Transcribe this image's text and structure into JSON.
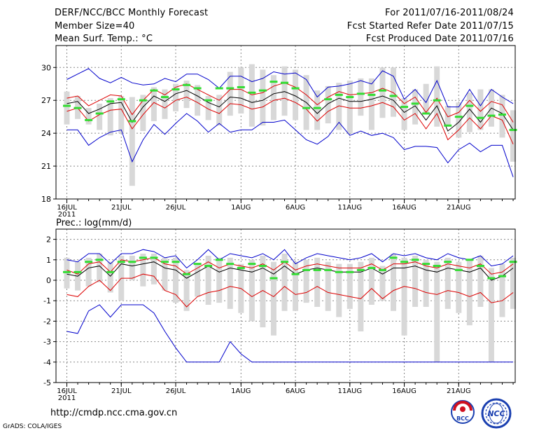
{
  "header": {
    "title": "DERF/NCC/BCC Monthly Forecast",
    "member_size": "Member Size=40",
    "variable": "Mean Surf. Temp.: °C",
    "forecast_window": "For 2011/07/16-2011/08/24",
    "start_date": "Fcst Started Refer Date 2011/07/15",
    "produced_date": "Fcst Produced Date 2011/07/16"
  },
  "footer": {
    "url": "http://cmdp.ncc.cma.gov.cn",
    "credit": "GrADS: COLA/IGES",
    "logo_left_text": "BCC",
    "logo_right_text": "NCC"
  },
  "colors": {
    "envelope": "#0000cc",
    "spread": "#dd0000",
    "mean": "#000000",
    "box": "#d8d8d8",
    "marker": "#33dd33",
    "grid": "#888888"
  },
  "chart_data": [
    {
      "type": "line",
      "title": "Mean Surf. Temp.: °C",
      "x_tick_labels": [
        "16JUL",
        "21JUL",
        "26JUL",
        "1AUG",
        "6AUG",
        "11AUG",
        "16AUG",
        "21AUG"
      ],
      "x_tick_days": [
        0,
        5,
        10,
        16,
        21,
        26,
        31,
        36
      ],
      "x_year_label": "2011",
      "ylim": [
        18,
        32
      ],
      "yticks": [
        18,
        21,
        24,
        27,
        30
      ],
      "series": [
        {
          "name": "max",
          "values": [
            28.9,
            29.4,
            29.9,
            29.0,
            28.6,
            29.1,
            28.6,
            28.4,
            28.5,
            29.0,
            28.7,
            29.4,
            29.4,
            28.9,
            28.1,
            29.2,
            29.2,
            28.7,
            29.0,
            29.6,
            29.4,
            29.5,
            28.9,
            27.3,
            28.2,
            28.3,
            28.5,
            28.8,
            28.5,
            29.7,
            29.2,
            27.1,
            28.0,
            26.8,
            28.8,
            26.4,
            26.4,
            28.0,
            26.5,
            28.0,
            27.3,
            26.7
          ]
        },
        {
          "name": "upper",
          "values": [
            27.2,
            27.4,
            26.5,
            27.0,
            27.5,
            27.4,
            25.7,
            27.0,
            28.0,
            27.5,
            28.2,
            28.5,
            28.0,
            27.5,
            27.0,
            28.0,
            28.0,
            27.5,
            27.7,
            28.3,
            28.6,
            28.2,
            27.5,
            26.6,
            27.3,
            27.8,
            27.5,
            27.6,
            27.7,
            28.1,
            27.7,
            26.7,
            27.3,
            25.9,
            27.2,
            25.5,
            25.9,
            27.0,
            26.0,
            26.9,
            26.6,
            25.0
          ]
        },
        {
          "name": "mean",
          "values": [
            26.7,
            26.9,
            25.8,
            26.2,
            26.7,
            26.8,
            25.0,
            26.4,
            27.4,
            26.9,
            27.6,
            27.9,
            27.4,
            26.8,
            26.4,
            27.3,
            27.2,
            26.8,
            27.0,
            27.6,
            27.8,
            27.4,
            26.8,
            25.8,
            26.7,
            27.2,
            26.9,
            26.9,
            27.1,
            27.4,
            27.0,
            25.9,
            26.5,
            25.2,
            26.5,
            24.2,
            25.0,
            26.2,
            25.0,
            26.3,
            25.8,
            24.3
          ]
        },
        {
          "name": "lower",
          "values": [
            26.0,
            26.3,
            25.1,
            25.7,
            26.1,
            26.2,
            24.4,
            25.7,
            26.8,
            26.3,
            27.0,
            27.3,
            26.8,
            26.2,
            25.8,
            26.7,
            26.6,
            26.2,
            26.4,
            27.0,
            27.2,
            26.8,
            26.2,
            25.1,
            26.0,
            26.5,
            26.3,
            26.3,
            26.5,
            26.8,
            26.4,
            25.2,
            25.8,
            24.4,
            25.8,
            23.4,
            24.3,
            25.4,
            24.4,
            25.6,
            25.2,
            23.0
          ]
        },
        {
          "name": "min",
          "values": [
            24.3,
            24.3,
            22.9,
            23.6,
            24.1,
            24.3,
            21.4,
            23.4,
            24.8,
            23.9,
            24.9,
            25.8,
            25.1,
            24.1,
            24.9,
            24.1,
            24.3,
            24.3,
            25.0,
            25.0,
            25.2,
            24.3,
            23.4,
            23.0,
            23.7,
            25.0,
            23.8,
            24.2,
            23.8,
            24.0,
            23.6,
            22.5,
            22.8,
            22.8,
            22.7,
            21.3,
            22.5,
            23.1,
            22.3,
            22.9,
            22.9,
            20.0
          ]
        }
      ],
      "boxes": {
        "low": [
          24.8,
          25.3,
          24.8,
          24.3,
          23.8,
          24.0,
          19.2,
          24.2,
          25.1,
          25.3,
          26.0,
          26.3,
          25.6,
          25.2,
          24.7,
          25.6,
          25.8,
          24.6,
          24.7,
          25.2,
          25.6,
          25.2,
          24.3,
          24.3,
          24.9,
          24.3,
          24.0,
          25.6,
          24.3,
          25.4,
          25.5,
          24.3,
          24.8,
          25.7,
          24.6,
          24.6,
          23.6,
          24.1,
          24.3,
          24.6,
          23.6,
          21.4
        ],
        "high": [
          27.8,
          27.4,
          26.3,
          26.7,
          27.2,
          27.4,
          27.3,
          27.5,
          28.2,
          28.0,
          28.5,
          28.8,
          28.4,
          27.4,
          27.5,
          29.6,
          30.0,
          30.3,
          29.8,
          29.3,
          30.1,
          29.8,
          29.3,
          27.9,
          28.3,
          28.6,
          28.8,
          29.0,
          29.0,
          30.0,
          30.0,
          27.2,
          28.0,
          28.5,
          30.1,
          26.5,
          26.8,
          27.7,
          28.0,
          28.0,
          27.5,
          26.1
        ]
      },
      "markers": [
        26.5,
        26.3,
        25.2,
        25.8,
        26.9,
        27.1,
        25.1,
        27.0,
        27.9,
        27.3,
        28.0,
        28.4,
        28.1,
        27.0,
        28.1,
        28.1,
        28.2,
        27.7,
        27.9,
        28.7,
        28.6,
        28.1,
        26.3,
        26.3,
        27.1,
        27.5,
        27.3,
        27.6,
        27.5,
        27.9,
        27.4,
        26.4,
        26.7,
        25.8,
        27.0,
        24.7,
        25.5,
        26.5,
        25.4,
        25.6,
        25.7,
        24.3
      ]
    },
    {
      "type": "line",
      "title": "Prec.: log(mm/d)",
      "x_tick_labels": [
        "16JUL",
        "21JUL",
        "26JUL",
        "1AUG",
        "6AUG",
        "11AUG",
        "16AUG",
        "21AUG"
      ],
      "x_tick_days": [
        0,
        5,
        10,
        16,
        21,
        26,
        31,
        36
      ],
      "x_year_label": "2011",
      "ylim": [
        -5,
        2.5
      ],
      "yticks": [
        -5,
        -4,
        -3,
        -2,
        -1,
        0,
        1,
        2
      ],
      "series": [
        {
          "name": "max",
          "values": [
            1.0,
            0.9,
            1.3,
            1.3,
            0.8,
            1.3,
            1.3,
            1.5,
            1.4,
            1.1,
            1.2,
            0.6,
            1.0,
            1.5,
            1.0,
            1.3,
            1.2,
            1.1,
            1.3,
            1.0,
            1.5,
            0.8,
            1.1,
            1.3,
            1.2,
            1.1,
            1.0,
            1.1,
            1.3,
            0.9,
            1.3,
            1.2,
            1.3,
            1.1,
            1.0,
            1.3,
            1.1,
            1.0,
            1.2,
            0.7,
            0.8,
            1.2
          ]
        },
        {
          "name": "upper",
          "values": [
            0.5,
            0.3,
            0.8,
            0.9,
            0.4,
            1.0,
            0.9,
            1.0,
            1.1,
            0.8,
            0.7,
            0.3,
            0.6,
            0.9,
            0.6,
            0.8,
            0.7,
            0.6,
            0.8,
            0.5,
            0.9,
            0.5,
            0.7,
            0.8,
            0.7,
            0.6,
            0.6,
            0.6,
            0.8,
            0.5,
            0.8,
            0.8,
            0.9,
            0.7,
            0.6,
            0.8,
            0.7,
            0.6,
            0.8,
            0.3,
            0.4,
            0.8
          ]
        },
        {
          "name": "mean",
          "values": [
            0.3,
            0.2,
            0.6,
            0.7,
            0.2,
            0.8,
            0.7,
            0.8,
            0.9,
            0.6,
            0.5,
            0.1,
            0.4,
            0.7,
            0.4,
            0.6,
            0.5,
            0.4,
            0.6,
            0.3,
            0.7,
            0.3,
            0.5,
            0.6,
            0.5,
            0.4,
            0.4,
            0.4,
            0.6,
            0.3,
            0.6,
            0.6,
            0.7,
            0.5,
            0.4,
            0.6,
            0.5,
            0.4,
            0.6,
            0.0,
            0.2,
            0.6
          ]
        },
        {
          "name": "lower",
          "values": [
            -0.7,
            -0.8,
            -0.3,
            0.0,
            -0.5,
            0.1,
            0.1,
            0.3,
            0.2,
            -0.5,
            -0.7,
            -1.3,
            -0.8,
            -0.6,
            -0.5,
            -0.3,
            -0.4,
            -0.8,
            -0.5,
            -0.8,
            -0.3,
            -0.7,
            -0.6,
            -0.3,
            -0.6,
            -0.7,
            -0.8,
            -0.9,
            -0.4,
            -0.9,
            -0.5,
            -0.3,
            -0.4,
            -0.6,
            -0.7,
            -0.5,
            -0.6,
            -0.8,
            -0.6,
            -1.1,
            -1.0,
            -0.6
          ]
        },
        {
          "name": "min",
          "values": [
            -2.5,
            -2.6,
            -1.5,
            -1.2,
            -1.8,
            -1.2,
            -1.2,
            -1.2,
            -1.6,
            -2.5,
            -3.3,
            -4.0,
            -4.0,
            -4.0,
            -4.0,
            -3.0,
            -3.6,
            -4.0,
            -4.0,
            -4.0,
            -4.0,
            -4.0,
            -4.0,
            -4.0,
            -4.0,
            -4.0,
            -4.0,
            -4.0,
            -4.0,
            -4.0,
            -4.0,
            -4.0,
            -4.0,
            -4.0,
            -4.0,
            -4.0,
            -4.0,
            -4.0,
            -4.0,
            -4.0,
            -4.0,
            -4.0
          ]
        }
      ],
      "boxes": {
        "low": [
          -0.4,
          -0.5,
          -0.3,
          -0.1,
          -0.6,
          -1.0,
          0.0,
          -0.3,
          -0.2,
          -0.5,
          -1.1,
          -1.5,
          -0.8,
          -1.2,
          -1.1,
          -1.4,
          -1.6,
          -2.0,
          -2.3,
          -2.7,
          -1.5,
          -1.5,
          -1.1,
          -1.3,
          -1.5,
          -1.8,
          -1.4,
          -2.5,
          -1.2,
          -1.0,
          -1.5,
          -2.7,
          -1.3,
          -1.3,
          -4.0,
          -1.4,
          -1.6,
          -2.2,
          -1.3,
          -4.0,
          -1.8,
          -1.4
        ],
        "high": [
          1.1,
          0.9,
          1.1,
          1.3,
          0.9,
          1.2,
          1.2,
          1.3,
          1.3,
          1.1,
          1.1,
          0.5,
          0.8,
          1.2,
          1.1,
          1.1,
          0.8,
          1.0,
          1.2,
          0.9,
          1.3,
          0.9,
          1.0,
          1.1,
          0.9,
          0.8,
          0.8,
          0.9,
          1.1,
          0.7,
          1.3,
          1.1,
          1.2,
          1.0,
          0.9,
          1.1,
          0.9,
          1.0,
          1.2,
          0.6,
          0.8,
          1.1
        ]
      },
      "markers": [
        0.4,
        0.4,
        0.9,
        1.0,
        0.4,
        0.9,
        0.9,
        1.1,
        1.1,
        0.9,
        0.9,
        0.3,
        0.8,
        0.7,
        1.0,
        0.8,
        0.6,
        0.8,
        0.7,
        0.1,
        0.9,
        0.3,
        0.5,
        0.5,
        0.5,
        0.4,
        0.4,
        0.5,
        0.6,
        0.5,
        1.1,
        0.9,
        1.0,
        0.8,
        0.7,
        0.9,
        0.5,
        1.0,
        0.7,
        0.1,
        0.2,
        0.9
      ]
    }
  ]
}
